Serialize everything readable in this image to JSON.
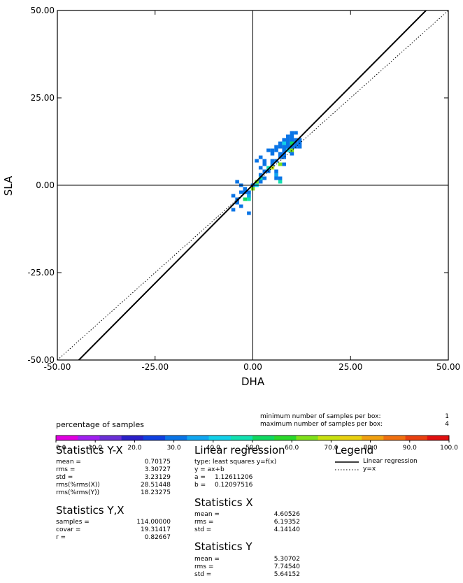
{
  "chart_data": {
    "type": "heatmap",
    "title": "",
    "xlabel": "DHA",
    "ylabel": "SLA",
    "xlim": [
      -50,
      50
    ],
    "ylim": [
      -50,
      50
    ],
    "x_ticks": [
      "-50.00",
      "-25.00",
      "0.00",
      "25.00",
      "50.00"
    ],
    "y_ticks": [
      "50.00",
      "25.00",
      "0.00",
      "-25.00",
      "-50.00"
    ],
    "grid": false,
    "cell_size": 1.0,
    "color_scale": {
      "label": "percentage of samples",
      "ticks": [
        "0.0",
        "10.0",
        "20.0",
        "30.0",
        "40.0",
        "50.0",
        "60.0",
        "70.0",
        "80.0",
        "90.0",
        "100.0"
      ],
      "colors": [
        "#e000e0",
        "#a020f0",
        "#6a2fd6",
        "#2a1fc8",
        "#1040e0",
        "#0a74e6",
        "#11a6f0",
        "#12d0e8",
        "#12e0b0",
        "#10d860",
        "#2ad82a",
        "#7fe01a",
        "#c8e010",
        "#e8d010",
        "#f0a010",
        "#f07010",
        "#e84010",
        "#e01010"
      ]
    },
    "box_limits": {
      "min_label": "minimum number of samples per box:",
      "min_value": "1",
      "max_label": "maximum number of samples per box:",
      "max_value": "4"
    },
    "series": [
      {
        "name": "Linear regression",
        "type": "line",
        "slope": 1.12611206,
        "intercept": 0.12097516,
        "style": "solid"
      },
      {
        "name": "y=x",
        "type": "line",
        "slope": 1,
        "intercept": 0,
        "style": "dotted"
      }
    ],
    "cells": [
      [
        -5,
        -3,
        5
      ],
      [
        -4,
        -4,
        5
      ],
      [
        -4,
        -5,
        5
      ],
      [
        -3,
        -6,
        5
      ],
      [
        -5,
        -7,
        5
      ],
      [
        -4,
        1,
        5
      ],
      [
        -3,
        0,
        5
      ],
      [
        -3,
        -2,
        5
      ],
      [
        -2,
        -2,
        5
      ],
      [
        -2,
        -1,
        5
      ],
      [
        -1,
        -2,
        5
      ],
      [
        -1,
        -3,
        6
      ],
      [
        -1,
        -4,
        8
      ],
      [
        -2,
        -4,
        9
      ],
      [
        -1,
        -8,
        5
      ],
      [
        0,
        -1,
        11
      ],
      [
        0,
        0,
        5
      ],
      [
        1,
        0,
        7
      ],
      [
        1,
        1,
        11
      ],
      [
        2,
        1,
        5
      ],
      [
        2,
        2,
        8
      ],
      [
        2,
        3,
        5
      ],
      [
        3,
        4,
        5
      ],
      [
        4,
        4,
        5
      ],
      [
        4,
        5,
        8
      ],
      [
        5,
        6,
        5
      ],
      [
        5,
        7,
        5
      ],
      [
        5,
        5,
        12
      ],
      [
        6,
        4,
        5
      ],
      [
        6,
        3,
        6
      ],
      [
        7,
        2,
        5
      ],
      [
        7,
        1,
        8
      ],
      [
        6,
        7,
        5
      ],
      [
        7,
        6,
        11
      ],
      [
        7,
        8,
        5
      ],
      [
        7,
        9,
        5
      ],
      [
        8,
        8,
        5
      ],
      [
        8,
        9,
        5
      ],
      [
        8,
        10,
        5
      ],
      [
        9,
        10,
        7
      ],
      [
        10,
        10,
        11
      ],
      [
        9,
        11,
        5
      ],
      [
        10,
        11,
        5
      ],
      [
        11,
        11,
        5
      ],
      [
        8,
        12,
        7
      ],
      [
        9,
        12,
        5
      ],
      [
        10,
        12,
        9
      ],
      [
        11,
        12,
        5
      ],
      [
        9,
        13,
        5
      ],
      [
        10,
        13,
        5
      ],
      [
        9,
        14,
        5
      ],
      [
        10,
        14,
        5
      ],
      [
        10,
        15,
        5
      ],
      [
        11,
        15,
        5
      ],
      [
        5,
        9,
        5
      ],
      [
        5,
        10,
        5
      ],
      [
        4,
        10,
        5
      ],
      [
        6,
        11,
        5
      ],
      [
        7,
        11,
        5
      ],
      [
        8,
        11,
        5
      ],
      [
        3,
        7,
        5
      ],
      [
        3,
        6,
        5
      ],
      [
        2,
        5,
        5
      ],
      [
        1,
        7,
        5
      ],
      [
        2,
        8,
        5
      ],
      [
        6,
        10,
        5
      ],
      [
        7,
        12,
        5
      ],
      [
        8,
        13,
        5
      ],
      [
        11,
        13,
        5
      ],
      [
        12,
        12,
        5
      ],
      [
        12,
        13,
        5
      ],
      [
        12,
        11,
        5
      ],
      [
        10,
        9,
        5
      ],
      [
        8,
        6,
        5
      ],
      [
        6,
        2,
        5
      ],
      [
        3,
        2,
        5
      ]
    ]
  },
  "stats_yx": {
    "title": "Statistics Y-X",
    "rows": [
      {
        "key": "mean =",
        "value": "0.70175"
      },
      {
        "key": "rms =",
        "value": "3.30727"
      },
      {
        "key": "std =",
        "value": "3.23129"
      },
      {
        "key": "rms(%rms(X))",
        "value": "28.51448"
      },
      {
        "key": "rms(%rms(Y))",
        "value": "18.23275"
      }
    ]
  },
  "stats_y_x": {
    "title": "Statistics Y,X",
    "rows": [
      {
        "key": "samples =",
        "value": "114.00000"
      },
      {
        "key": "covar =",
        "value": "19.31417"
      },
      {
        "key": "r =",
        "value": "0.82667"
      }
    ]
  },
  "regression": {
    "title": "Linear regression",
    "lines": [
      "type: least squares y=f(x)",
      "y = ax+b"
    ],
    "a_key": "a =",
    "a_value": "1.12611206",
    "b_key": "b =",
    "b_value": "0.12097516"
  },
  "stats_x": {
    "title": "Statistics X",
    "rows": [
      {
        "key": "mean =",
        "value": "4.60526"
      },
      {
        "key": "rms =",
        "value": "6.19352"
      },
      {
        "key": "std =",
        "value": "4.14140"
      }
    ]
  },
  "stats_y": {
    "title": "Statistics Y",
    "rows": [
      {
        "key": "mean =",
        "value": "5.30702"
      },
      {
        "key": "rms =",
        "value": "7.74540"
      },
      {
        "key": "std =",
        "value": "5.64152"
      }
    ]
  },
  "legend": {
    "title": "Legend",
    "items": [
      {
        "label": "Linear regression",
        "style": "solid"
      },
      {
        "label": "y=x",
        "style": "dotted"
      }
    ]
  }
}
